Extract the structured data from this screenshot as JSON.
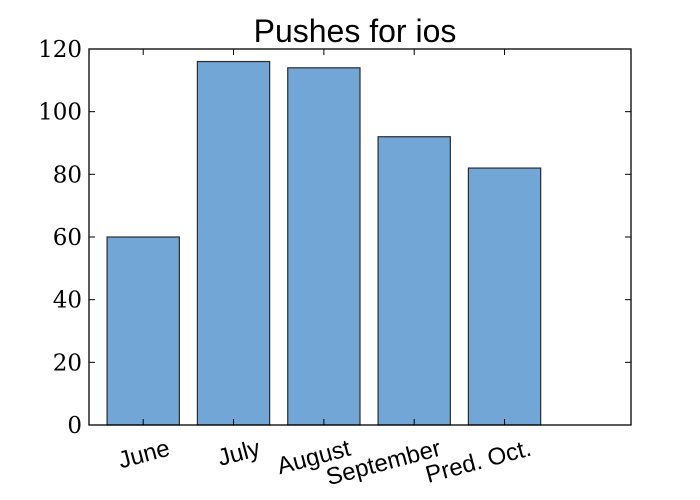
{
  "chart_data": {
    "type": "bar",
    "title": "Pushes for ios",
    "xlabel": "",
    "ylabel": "",
    "categories": [
      "June",
      "July",
      "August",
      "September",
      "Pred. Oct."
    ],
    "values": [
      60,
      116,
      114,
      92,
      82
    ],
    "ylim": [
      0,
      120
    ],
    "yticks": [
      0,
      20,
      40,
      60,
      80,
      100,
      120
    ],
    "bar_color": "#72a6d6",
    "bar_edge_color": "#2b2b2b",
    "grid": false,
    "legend": "none"
  }
}
